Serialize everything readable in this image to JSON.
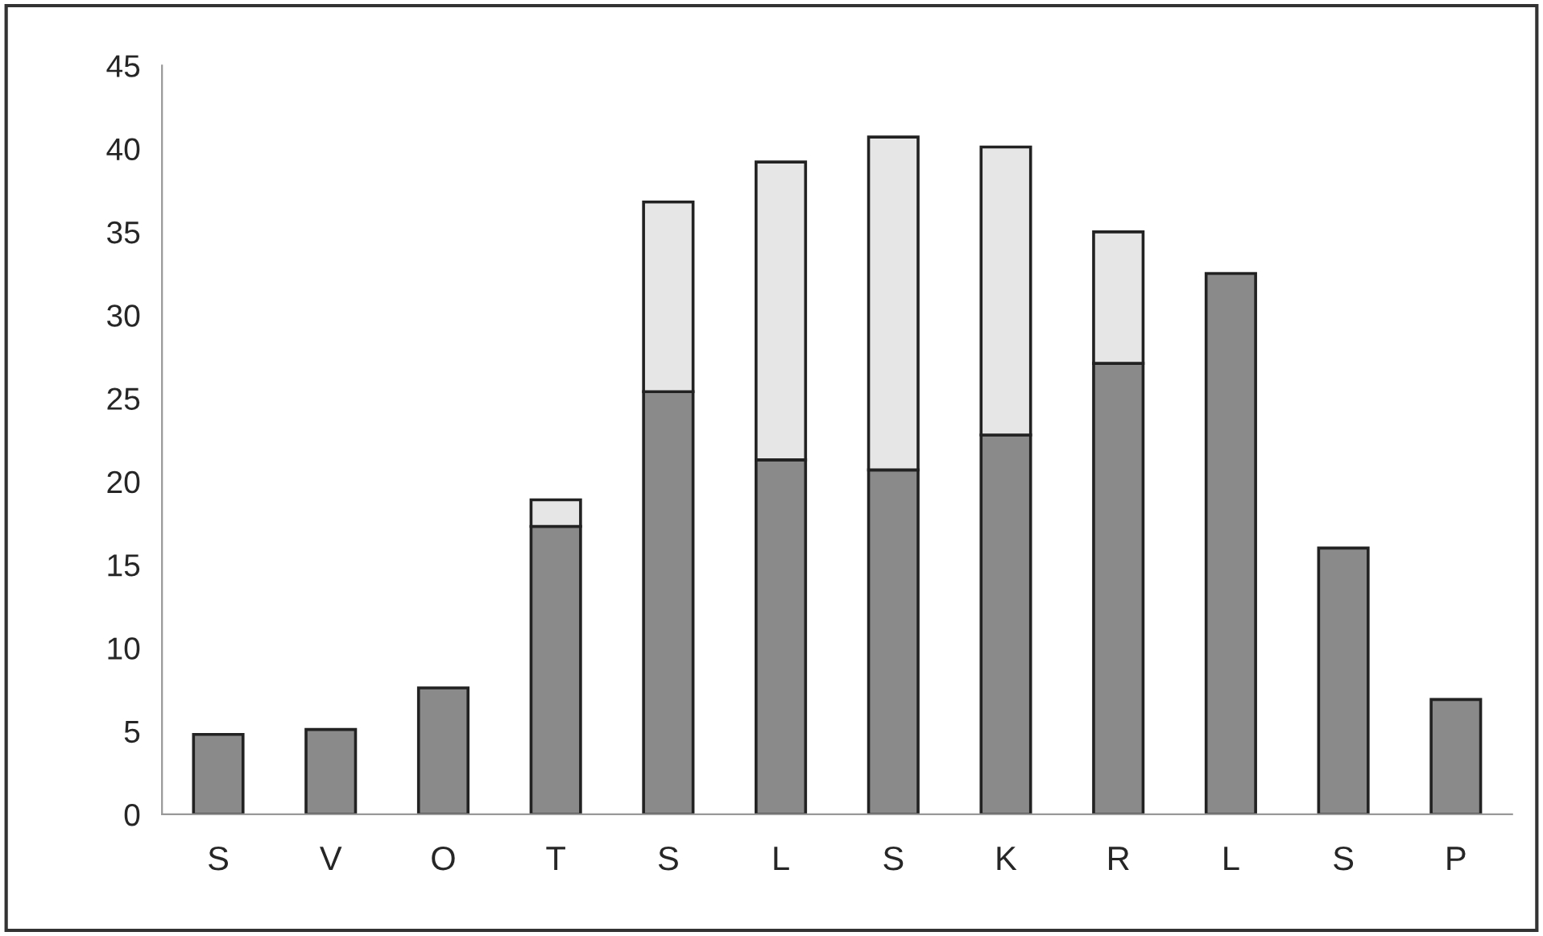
{
  "chart_data": {
    "type": "bar",
    "stacked": true,
    "categories": [
      "S",
      "V",
      "O",
      "T",
      "S",
      "L",
      "S",
      "K",
      "R",
      "L",
      "S",
      "P"
    ],
    "series": [
      {
        "color": "#8a8a8a",
        "values": [
          4.8,
          5.1,
          7.6,
          17.3,
          25.4,
          21.3,
          20.7,
          22.8,
          27.1,
          32.5,
          16.0,
          6.9
        ]
      },
      {
        "color": "#e6e6e6",
        "values": [
          null,
          null,
          null,
          1.6,
          11.4,
          17.9,
          20.0,
          17.3,
          7.9,
          null,
          null,
          null
        ]
      }
    ],
    "ylim": [
      0,
      45
    ],
    "yticks": [
      0,
      5,
      10,
      15,
      20,
      25,
      30,
      35,
      40,
      45
    ],
    "grid": false,
    "legend": false
  }
}
